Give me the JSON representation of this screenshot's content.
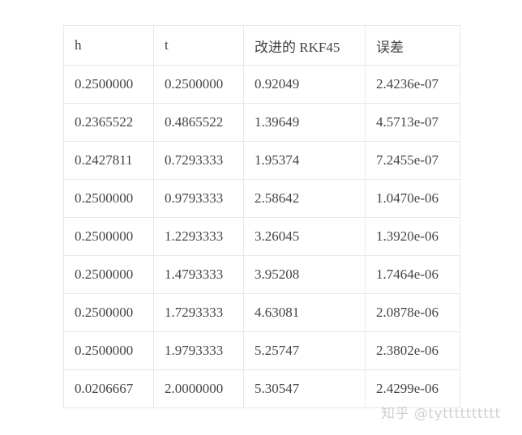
{
  "table": {
    "headers": [
      "h",
      "t",
      "改进的 RKF45",
      "误差"
    ],
    "rows": [
      [
        "0.2500000",
        "0.2500000",
        "0.92049",
        "2.4236e-07"
      ],
      [
        "0.2365522",
        "0.4865522",
        "1.39649",
        "4.5713e-07"
      ],
      [
        "0.2427811",
        "0.7293333",
        "1.95374",
        "7.2455e-07"
      ],
      [
        "0.2500000",
        "0.9793333",
        "2.58642",
        "1.0470e-06"
      ],
      [
        "0.2500000",
        "1.2293333",
        "3.26045",
        "1.3920e-06"
      ],
      [
        "0.2500000",
        "1.4793333",
        "3.95208",
        "1.7464e-06"
      ],
      [
        "0.2500000",
        "1.7293333",
        "4.63081",
        "2.0878e-06"
      ],
      [
        "0.2500000",
        "1.9793333",
        "5.25747",
        "2.3802e-06"
      ],
      [
        "0.0206667",
        "2.0000000",
        "5.30547",
        "2.4299e-06"
      ]
    ]
  },
  "watermark": "知乎 @tytttttttttt"
}
